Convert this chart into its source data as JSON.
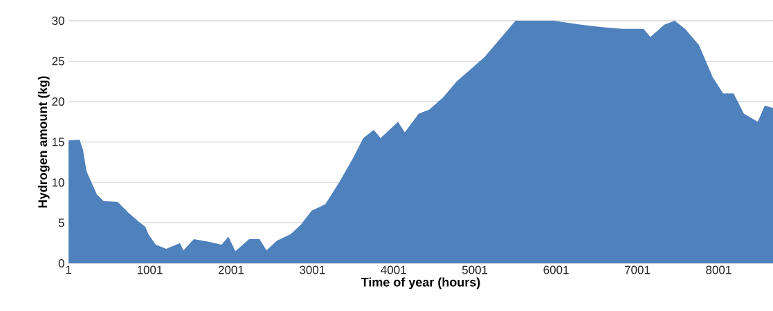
{
  "chart_data": {
    "type": "area",
    "xlabel": "Time of year (hours)",
    "ylabel": "Hydrogen amount (kg)",
    "color": "#4f81bd",
    "grid": "y",
    "xlim": [
      1,
      8670
    ],
    "ylim": [
      0,
      30
    ],
    "xticks": [
      1,
      1001,
      2001,
      3001,
      4001,
      5001,
      6001,
      7001,
      8001
    ],
    "yticks": [
      0,
      5,
      10,
      15,
      20,
      25,
      30
    ],
    "x": [
      1,
      137,
      180,
      222,
      350,
      435,
      605,
      733,
      861,
      946,
      990,
      1075,
      1202,
      1372,
      1415,
      1543,
      1713,
      1884,
      1969,
      2054,
      2224,
      2352,
      2437,
      2565,
      2735,
      2863,
      2991,
      3161,
      3331,
      3501,
      3629,
      3757,
      3842,
      4055,
      4139,
      4310,
      4438,
      4608,
      4778,
      4949,
      5119,
      5289,
      5501,
      5970,
      6310,
      6566,
      6821,
      7077,
      7162,
      7332,
      7460,
      7588,
      7758,
      7929,
      8057,
      8185,
      8312,
      8483,
      8568,
      8670
    ],
    "values": [
      15.2,
      15.3,
      14,
      11.4,
      8.5,
      7.7,
      7.6,
      6.3,
      5.2,
      4.5,
      3.5,
      2.3,
      1.8,
      2.5,
      1.6,
      3.0,
      2.7,
      2.3,
      3.3,
      1.5,
      3.0,
      3.0,
      1.6,
      2.8,
      3.6,
      4.8,
      6.5,
      7.3,
      10,
      13,
      15.5,
      16.5,
      15.5,
      17.5,
      16.2,
      18.5,
      19,
      20.5,
      22.5,
      24,
      25.5,
      27.5,
      30,
      30,
      29.5,
      29.2,
      29,
      29,
      28,
      29.5,
      30,
      29,
      27,
      23,
      21,
      21,
      18.5,
      17.5,
      19.5,
      19.2
    ]
  }
}
